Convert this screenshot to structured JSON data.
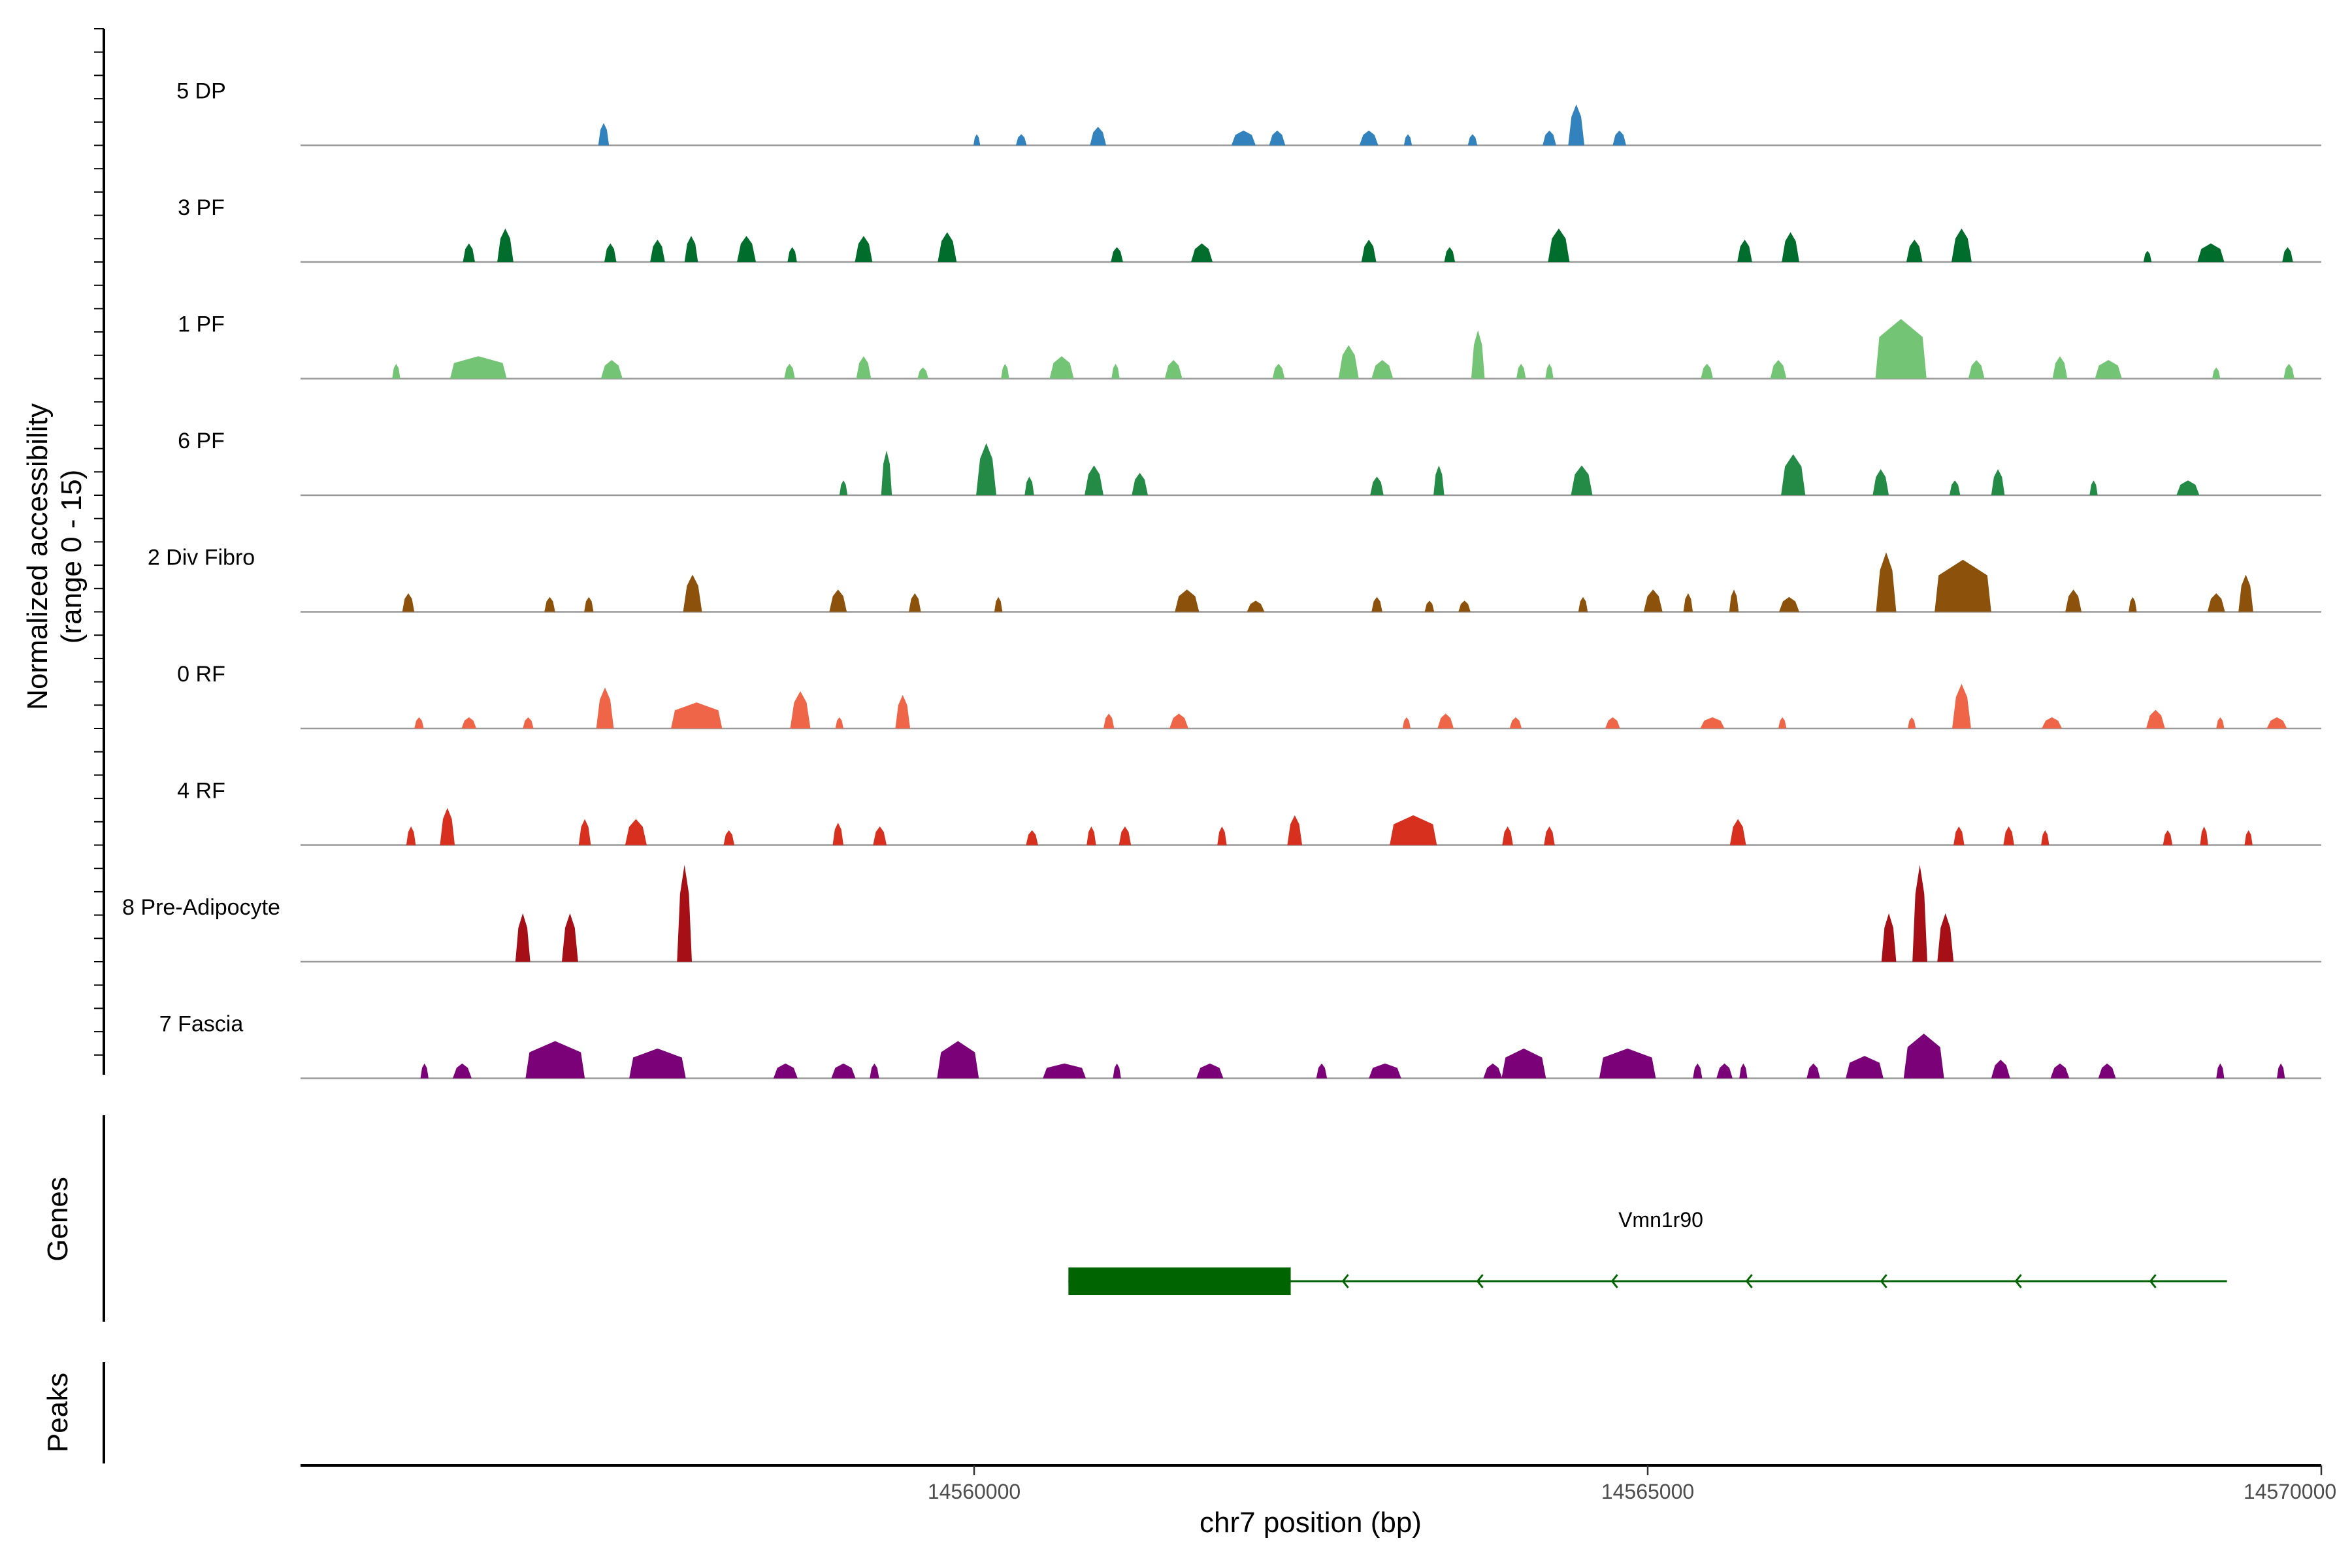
{
  "chart_data": {
    "type": "area",
    "title": "",
    "xlabel": "chr7 position (bp)",
    "ylabel": "Normalized accessibility",
    "ylabel_sub": "(range 0 - 15)",
    "xlim": [
      14555000,
      14570000
    ],
    "ylim": [
      0,
      15
    ],
    "x_ticks": [
      {
        "value": 14560000,
        "label": "14560000"
      },
      {
        "value": 14565000,
        "label": "14565000"
      },
      {
        "value": 14570000,
        "label": "14570000"
      }
    ],
    "series": [
      {
        "name": "5 DP",
        "color": "#3182bd",
        "peaks": [
          [
            14557250,
            80,
            6
          ],
          [
            14560020,
            50,
            3
          ],
          [
            14560350,
            80,
            3
          ],
          [
            14560920,
            120,
            5
          ],
          [
            14562000,
            180,
            4
          ],
          [
            14562250,
            120,
            4
          ],
          [
            14562930,
            140,
            4
          ],
          [
            14563220,
            60,
            3
          ],
          [
            14563700,
            70,
            3
          ],
          [
            14564270,
            100,
            4
          ],
          [
            14564470,
            120,
            11
          ],
          [
            14564790,
            100,
            4
          ]
        ]
      },
      {
        "name": "3 PF",
        "color": "#006d2c",
        "peaks": [
          [
            14556250,
            90,
            5
          ],
          [
            14556520,
            120,
            9
          ],
          [
            14557300,
            90,
            5
          ],
          [
            14557650,
            110,
            6
          ],
          [
            14557900,
            100,
            7
          ],
          [
            14558310,
            140,
            7
          ],
          [
            14558650,
            70,
            4
          ],
          [
            14559180,
            130,
            7
          ],
          [
            14559800,
            140,
            8
          ],
          [
            14561060,
            90,
            4
          ],
          [
            14561690,
            160,
            5
          ],
          [
            14562930,
            110,
            6
          ],
          [
            14563530,
            80,
            4
          ],
          [
            14564340,
            160,
            9
          ],
          [
            14565720,
            110,
            6
          ],
          [
            14566060,
            130,
            8
          ],
          [
            14566980,
            120,
            6
          ],
          [
            14567330,
            150,
            9
          ],
          [
            14568710,
            60,
            3
          ],
          [
            14569180,
            200,
            5
          ],
          [
            14569750,
            80,
            4
          ]
        ]
      },
      {
        "name": "1 PF",
        "color": "#74c476",
        "peaks": [
          [
            14555710,
            60,
            4
          ],
          [
            14556320,
            420,
            6
          ],
          [
            14557310,
            160,
            5
          ],
          [
            14558630,
            80,
            4
          ],
          [
            14559180,
            110,
            6
          ],
          [
            14559620,
            80,
            3
          ],
          [
            14560230,
            60,
            4
          ],
          [
            14560650,
            180,
            6
          ],
          [
            14561050,
            60,
            4
          ],
          [
            14561480,
            130,
            5
          ],
          [
            14562260,
            90,
            4
          ],
          [
            14562780,
            150,
            9
          ],
          [
            14563030,
            160,
            5
          ],
          [
            14563740,
            100,
            13
          ],
          [
            14564060,
            70,
            4
          ],
          [
            14564270,
            60,
            4
          ],
          [
            14565440,
            90,
            4
          ],
          [
            14565970,
            120,
            5
          ],
          [
            14566880,
            380,
            16
          ],
          [
            14567440,
            120,
            5
          ],
          [
            14568060,
            110,
            6
          ],
          [
            14568420,
            200,
            5
          ],
          [
            14569220,
            60,
            3
          ],
          [
            14569760,
            80,
            4
          ]
        ]
      },
      {
        "name": "6 PF",
        "color": "#238b45",
        "peaks": [
          [
            14559030,
            60,
            4
          ],
          [
            14559350,
            80,
            12
          ],
          [
            14560090,
            150,
            14
          ],
          [
            14560410,
            70,
            5
          ],
          [
            14560890,
            140,
            8
          ],
          [
            14561230,
            120,
            6
          ],
          [
            14562990,
            100,
            5
          ],
          [
            14563450,
            80,
            8
          ],
          [
            14564510,
            160,
            8
          ],
          [
            14566080,
            180,
            11
          ],
          [
            14566730,
            120,
            7
          ],
          [
            14567280,
            80,
            4
          ],
          [
            14567600,
            100,
            7
          ],
          [
            14568310,
            60,
            4
          ],
          [
            14569010,
            170,
            4
          ]
        ]
      },
      {
        "name": "2 Div Fibro",
        "color": "#8c510a",
        "peaks": [
          [
            14555800,
            90,
            5
          ],
          [
            14556850,
            80,
            4
          ],
          [
            14557140,
            70,
            4
          ],
          [
            14557910,
            140,
            10
          ],
          [
            14558990,
            130,
            6
          ],
          [
            14559560,
            90,
            5
          ],
          [
            14560180,
            60,
            4
          ],
          [
            14561580,
            180,
            6
          ],
          [
            14562090,
            130,
            3
          ],
          [
            14562990,
            80,
            4
          ],
          [
            14563380,
            70,
            3
          ],
          [
            14563640,
            90,
            3
          ],
          [
            14564520,
            70,
            4
          ],
          [
            14565040,
            140,
            6
          ],
          [
            14565300,
            70,
            5
          ],
          [
            14565640,
            70,
            6
          ],
          [
            14566050,
            150,
            4
          ],
          [
            14566770,
            150,
            16
          ],
          [
            14567340,
            420,
            14
          ],
          [
            14568160,
            120,
            6
          ],
          [
            14568600,
            60,
            4
          ],
          [
            14569220,
            130,
            5
          ],
          [
            14569440,
            110,
            10
          ]
        ]
      },
      {
        "name": "0 RF",
        "color": "#ef6548",
        "peaks": [
          [
            14555880,
            70,
            3
          ],
          [
            14556250,
            110,
            3
          ],
          [
            14556690,
            80,
            3
          ],
          [
            14557260,
            130,
            11
          ],
          [
            14557940,
            380,
            7
          ],
          [
            14558710,
            150,
            10
          ],
          [
            14559000,
            60,
            3
          ],
          [
            14559470,
            110,
            9
          ],
          [
            14561000,
            80,
            4
          ],
          [
            14561520,
            140,
            4
          ],
          [
            14563210,
            60,
            3
          ],
          [
            14563500,
            120,
            4
          ],
          [
            14564020,
            90,
            3
          ],
          [
            14564740,
            110,
            3
          ],
          [
            14565480,
            180,
            3
          ],
          [
            14566000,
            60,
            3
          ],
          [
            14566960,
            60,
            3
          ],
          [
            14567330,
            140,
            12
          ],
          [
            14568000,
            150,
            3
          ],
          [
            14568770,
            140,
            5
          ],
          [
            14569250,
            60,
            3
          ],
          [
            14569670,
            150,
            3
          ]
        ]
      },
      {
        "name": "4 RF",
        "color": "#d7301f",
        "peaks": [
          [
            14555820,
            70,
            5
          ],
          [
            14556090,
            110,
            10
          ],
          [
            14557110,
            90,
            7
          ],
          [
            14557490,
            160,
            7
          ],
          [
            14558180,
            80,
            4
          ],
          [
            14558990,
            80,
            6
          ],
          [
            14559300,
            100,
            5
          ],
          [
            14560430,
            90,
            4
          ],
          [
            14560870,
            70,
            5
          ],
          [
            14561120,
            90,
            5
          ],
          [
            14561840,
            70,
            5
          ],
          [
            14562380,
            110,
            8
          ],
          [
            14563260,
            350,
            8
          ],
          [
            14563960,
            80,
            5
          ],
          [
            14564270,
            80,
            5
          ],
          [
            14565670,
            120,
            7
          ],
          [
            14567310,
            80,
            5
          ],
          [
            14567680,
            80,
            5
          ],
          [
            14567950,
            60,
            4
          ],
          [
            14568860,
            70,
            4
          ],
          [
            14569130,
            60,
            5
          ],
          [
            14569460,
            60,
            4
          ]
        ]
      },
      {
        "name": "8 Pre-Adipocyte",
        "color": "#a50f15",
        "peaks": [
          [
            14556650,
            110,
            13
          ],
          [
            14557000,
            120,
            13
          ],
          [
            14557850,
            110,
            26
          ],
          [
            14566790,
            110,
            13
          ],
          [
            14567020,
            110,
            26
          ],
          [
            14567210,
            120,
            13
          ]
        ]
      },
      {
        "name": "7 Fascia",
        "color": "#7a0177",
        "peaks": [
          [
            14555920,
            60,
            4
          ],
          [
            14556200,
            140,
            4
          ],
          [
            14556890,
            440,
            10
          ],
          [
            14557650,
            420,
            8
          ],
          [
            14558600,
            180,
            4
          ],
          [
            14559030,
            180,
            4
          ],
          [
            14559260,
            70,
            4
          ],
          [
            14559880,
            310,
            10
          ],
          [
            14560670,
            320,
            4
          ],
          [
            14561060,
            60,
            4
          ],
          [
            14561750,
            200,
            4
          ],
          [
            14562580,
            80,
            4
          ],
          [
            14563050,
            240,
            4
          ],
          [
            14563850,
            140,
            4
          ],
          [
            14564080,
            330,
            8
          ],
          [
            14564850,
            420,
            8
          ],
          [
            14565370,
            70,
            4
          ],
          [
            14565570,
            120,
            4
          ],
          [
            14565710,
            60,
            4
          ],
          [
            14566230,
            100,
            4
          ],
          [
            14566610,
            280,
            6
          ],
          [
            14567050,
            300,
            12
          ],
          [
            14567620,
            140,
            5
          ],
          [
            14568060,
            140,
            4
          ],
          [
            14568410,
            130,
            4
          ],
          [
            14569250,
            60,
            4
          ],
          [
            14569700,
            60,
            4
          ]
        ]
      }
    ],
    "genes": [
      {
        "name": "Vmn1r90",
        "start": 14560700,
        "end": 14569300,
        "exon_start": 14560700,
        "exon_end": 14562350,
        "strand": "-",
        "color": "#006400"
      }
    ],
    "gene_panel_title": "Genes",
    "peaks_panel_title": "Peaks"
  }
}
